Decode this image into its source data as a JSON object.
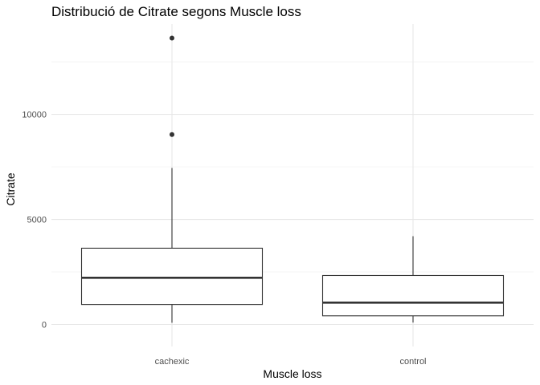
{
  "chart_data": {
    "type": "boxplot",
    "title": "Distribució de Citrate segons Muscle loss",
    "xlabel": "Muscle loss",
    "ylabel": "Citrate",
    "categories": [
      "cachexic",
      "control"
    ],
    "y_ticks": [
      0,
      5000,
      10000
    ],
    "y_tick_labels": [
      "0",
      "5000",
      "10000"
    ],
    "ylim": [
      -1050,
      14300
    ],
    "grid": true,
    "boxes": [
      {
        "category": "cachexic",
        "whisker_low": 80,
        "q1": 950,
        "median": 2220,
        "q3": 3630,
        "whisker_high": 7450,
        "outliers": [
          9040,
          13630
        ]
      },
      {
        "category": "control",
        "whisker_low": 90,
        "q1": 410,
        "median": 1040,
        "q3": 2330,
        "whisker_high": 4200,
        "outliers": []
      }
    ]
  }
}
